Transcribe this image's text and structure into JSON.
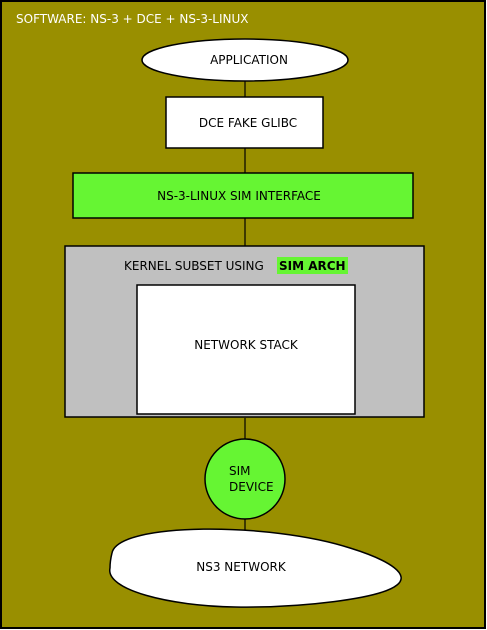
{
  "title": "SOFTWARE: NS-3 + DCE + NS-3-LINUX",
  "colors": {
    "background": "#998f00",
    "green": "#66f533",
    "kernel_grey": "#c0c0c0",
    "white": "#ffffff",
    "stroke": "#000000"
  },
  "nodes": {
    "application": "APPLICATION",
    "dce_fake_glibc": "DCE FAKE GLIBC",
    "sim_interface": "NS-3-LINUX SIM INTERFACE",
    "kernel_label": "KERNEL SUBSET USING",
    "sim_arch": "SIM ARCH",
    "network_stack": "NETWORK STACK",
    "sim_device_line1": "SIM",
    "sim_device_line2": "DEVICE",
    "ns3_network": "NS3 NETWORK"
  }
}
